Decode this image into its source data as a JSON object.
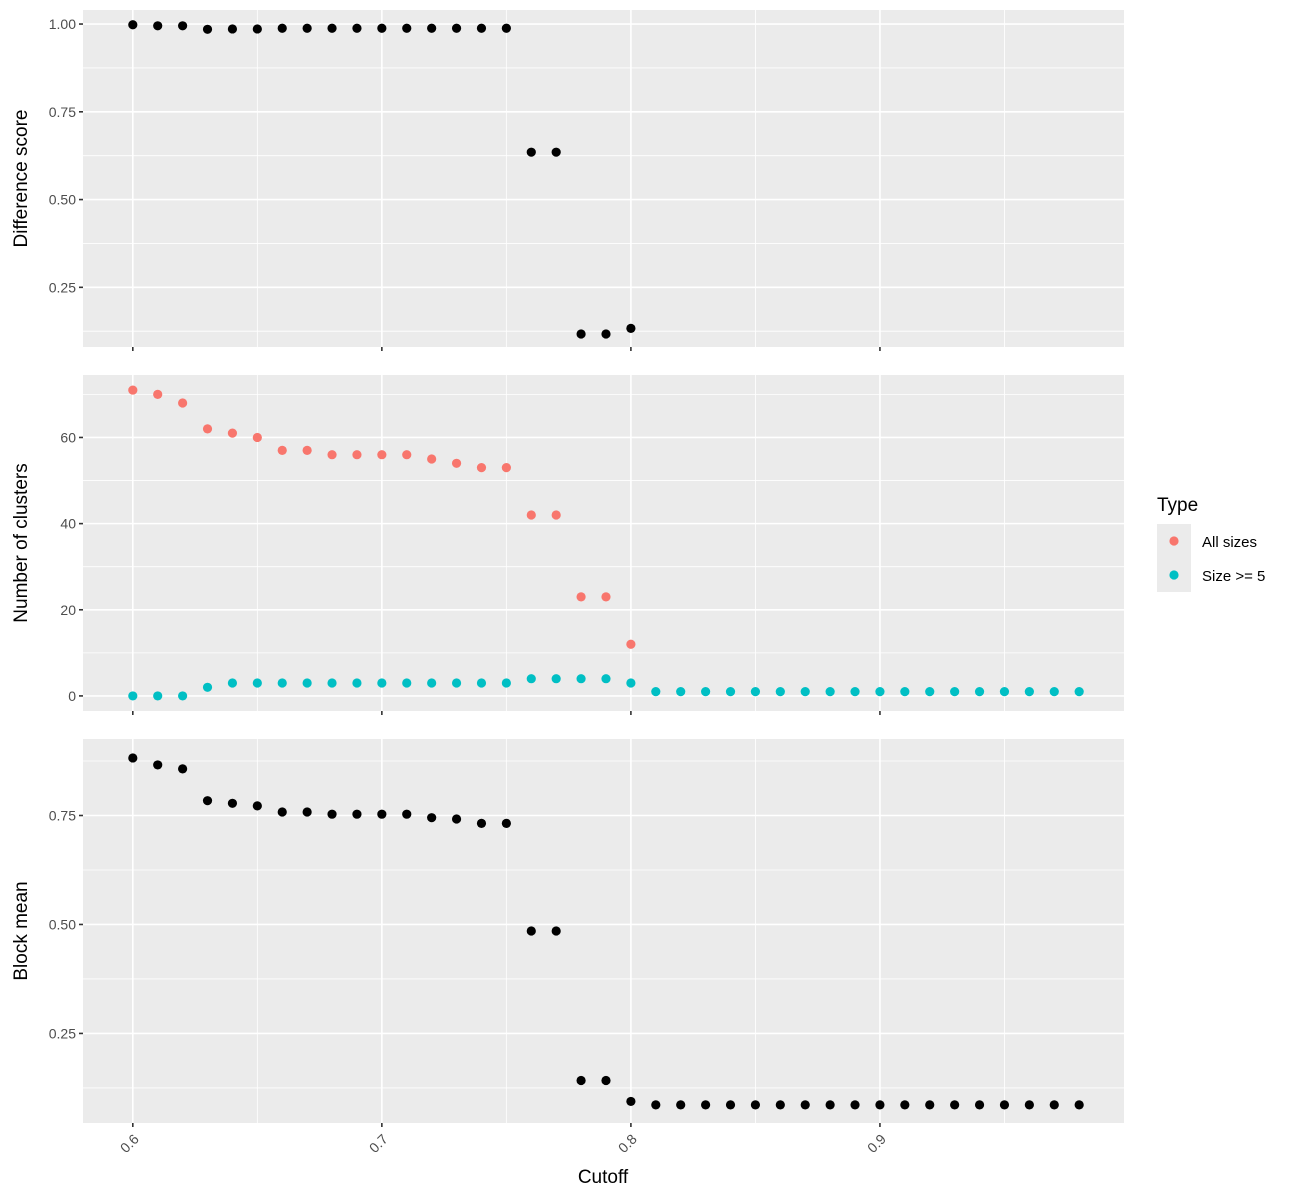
{
  "chart_data": [
    {
      "type": "scatter",
      "ylabel": "Difference score",
      "xlabel": "",
      "x_ticks": [
        0.6,
        0.7,
        0.8,
        0.9
      ],
      "y_ticks": [
        "0.25",
        "0.50",
        "0.75",
        "1.00"
      ],
      "ylim": [
        0.08,
        1.04
      ],
      "xlim": [
        0.58,
        0.998
      ],
      "series": [
        {
          "color": "#000000",
          "x": [
            0.6,
            0.61,
            0.62,
            0.63,
            0.64,
            0.65,
            0.66,
            0.67,
            0.68,
            0.69,
            0.7,
            0.71,
            0.72,
            0.73,
            0.74,
            0.75,
            0.76,
            0.77,
            0.78,
            0.79,
            0.8
          ],
          "y": [
            0.998,
            0.995,
            0.995,
            0.985,
            0.986,
            0.986,
            0.988,
            0.988,
            0.988,
            0.988,
            0.988,
            0.988,
            0.988,
            0.988,
            0.988,
            0.988,
            0.635,
            0.635,
            0.117,
            0.117,
            0.133
          ]
        }
      ]
    },
    {
      "type": "scatter",
      "ylabel": "Number of clusters",
      "xlabel": "",
      "x_ticks": [
        0.6,
        0.7,
        0.8,
        0.9
      ],
      "y_ticks": [
        "0",
        "20",
        "40",
        "60"
      ],
      "ylim": [
        -3.5,
        74.5
      ],
      "xlim": [
        0.58,
        0.998
      ],
      "legend": {
        "title": "Type",
        "position": "right"
      },
      "series": [
        {
          "name": "All sizes",
          "color": "#F8766D",
          "x": [
            0.6,
            0.61,
            0.62,
            0.63,
            0.64,
            0.65,
            0.66,
            0.67,
            0.68,
            0.69,
            0.7,
            0.71,
            0.72,
            0.73,
            0.74,
            0.75,
            0.76,
            0.77,
            0.78,
            0.79,
            0.8
          ],
          "y": [
            71,
            70,
            68,
            62,
            61,
            60,
            57,
            57,
            56,
            56,
            56,
            56,
            55,
            54,
            53,
            53,
            42,
            42,
            23,
            23,
            12
          ]
        },
        {
          "name": "Size >= 5",
          "color": "#00BFC4",
          "x": [
            0.6,
            0.61,
            0.62,
            0.63,
            0.64,
            0.65,
            0.66,
            0.67,
            0.68,
            0.69,
            0.7,
            0.71,
            0.72,
            0.73,
            0.74,
            0.75,
            0.76,
            0.77,
            0.78,
            0.79,
            0.8,
            0.81,
            0.82,
            0.83,
            0.84,
            0.85,
            0.86,
            0.87,
            0.88,
            0.89,
            0.9,
            0.91,
            0.92,
            0.93,
            0.94,
            0.95,
            0.96,
            0.97,
            0.98
          ],
          "y": [
            0,
            0,
            0,
            2,
            3,
            3,
            3,
            3,
            3,
            3,
            3,
            3,
            3,
            3,
            3,
            3,
            4,
            4,
            4,
            4,
            3,
            1,
            1,
            1,
            1,
            1,
            1,
            1,
            1,
            1,
            1,
            1,
            1,
            1,
            1,
            1,
            1,
            1,
            1
          ]
        }
      ]
    },
    {
      "type": "scatter",
      "ylabel": "Block mean",
      "xlabel": "Cutoff",
      "x_ticks": [
        "0.6",
        "0.7",
        "0.8",
        "0.9"
      ],
      "y_ticks": [
        "0.25",
        "0.50",
        "0.75"
      ],
      "ylim": [
        0.0445,
        0.9255
      ],
      "xlim": [
        0.58,
        0.998
      ],
      "series": [
        {
          "color": "#000000",
          "x": [
            0.6,
            0.61,
            0.62,
            0.63,
            0.64,
            0.65,
            0.66,
            0.67,
            0.68,
            0.69,
            0.7,
            0.71,
            0.72,
            0.73,
            0.74,
            0.75,
            0.76,
            0.77,
            0.78,
            0.79,
            0.8,
            0.81,
            0.82,
            0.83,
            0.84,
            0.85,
            0.86,
            0.87,
            0.88,
            0.89,
            0.9,
            0.91,
            0.92,
            0.93,
            0.94,
            0.95,
            0.96,
            0.97,
            0.98
          ],
          "y": [
            0.882,
            0.866,
            0.857,
            0.784,
            0.778,
            0.772,
            0.758,
            0.758,
            0.753,
            0.753,
            0.753,
            0.753,
            0.745,
            0.742,
            0.732,
            0.732,
            0.485,
            0.485,
            0.142,
            0.142,
            0.094,
            0.086,
            0.086,
            0.086,
            0.086,
            0.086,
            0.086,
            0.086,
            0.086,
            0.086,
            0.086,
            0.086,
            0.086,
            0.086,
            0.086,
            0.086,
            0.086,
            0.086,
            0.086
          ]
        }
      ]
    }
  ],
  "legend": {
    "title": "Type",
    "items": [
      {
        "label": "All sizes",
        "color": "#F8766D"
      },
      {
        "label": "Size >= 5",
        "color": "#00BFC4"
      }
    ]
  },
  "x_axis_title": "Cutoff"
}
